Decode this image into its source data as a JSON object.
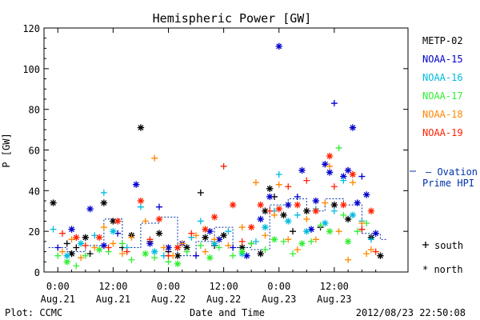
{
  "chart_data": {
    "type": "scatter",
    "title": "Hemispheric Power [GW]",
    "ylabel": "P [GW]",
    "xlabel": "Date and Time",
    "ylim": [
      0,
      120
    ],
    "yticks": [
      0,
      20,
      40,
      60,
      80,
      100,
      120
    ],
    "xlim": [
      -3,
      76
    ],
    "xticks": [
      {
        "hour": 0,
        "time": "0:00",
        "date": "Aug.21"
      },
      {
        "hour": 12,
        "time": "12:00",
        "date": "Aug.21"
      },
      {
        "hour": 24,
        "time": "0:00",
        "date": "Aug.22"
      },
      {
        "hour": 36,
        "time": "12:00",
        "date": "Aug.22"
      },
      {
        "hour": 48,
        "time": "0:00",
        "date": "Aug.23"
      },
      {
        "hour": 60,
        "time": "12:00",
        "date": "Aug.23"
      }
    ],
    "x_unit": "hours since 2012-08-21 00:00 UT",
    "series": [
      {
        "name": "METP-02",
        "color": "#000000",
        "points": [
          [
            -1,
            34,
            "n"
          ],
          [
            2,
            14,
            "+"
          ],
          [
            3,
            9,
            "n"
          ],
          [
            4,
            12,
            "+"
          ],
          [
            6,
            17,
            "n"
          ],
          [
            7,
            9,
            "+"
          ],
          [
            10,
            34,
            "n"
          ],
          [
            12,
            25,
            "n"
          ],
          [
            14,
            12,
            "+"
          ],
          [
            16,
            18,
            "n"
          ],
          [
            18,
            71,
            "n"
          ],
          [
            20,
            15,
            "+"
          ],
          [
            22,
            19,
            "n"
          ],
          [
            24,
            10,
            "+"
          ],
          [
            26,
            8,
            "n"
          ],
          [
            28,
            12,
            "n"
          ],
          [
            31,
            39,
            "+"
          ],
          [
            32,
            17,
            "n"
          ],
          [
            34,
            13,
            "+"
          ],
          [
            36,
            18,
            "n"
          ],
          [
            40,
            12,
            "n"
          ],
          [
            42,
            14,
            "+"
          ],
          [
            44,
            9,
            "n"
          ],
          [
            45,
            30,
            "n"
          ],
          [
            46,
            41,
            "n"
          ],
          [
            47,
            37,
            "+"
          ],
          [
            49,
            28,
            "n"
          ],
          [
            51,
            20,
            "+"
          ],
          [
            54,
            30,
            "n"
          ],
          [
            57,
            22,
            "+"
          ],
          [
            60,
            33,
            "n"
          ],
          [
            63,
            26,
            "n"
          ],
          [
            66,
            21,
            "+"
          ],
          [
            68,
            17,
            "n"
          ],
          [
            70,
            8,
            "n"
          ]
        ]
      },
      {
        "name": "NOAA-15",
        "color": "#0000cc",
        "points": [
          [
            0,
            12,
            "+"
          ],
          [
            3,
            21,
            "n"
          ],
          [
            7,
            31,
            "n"
          ],
          [
            10,
            13,
            "n"
          ],
          [
            13,
            19,
            "+"
          ],
          [
            17,
            43,
            "n"
          ],
          [
            20,
            14,
            "n"
          ],
          [
            22,
            32,
            "+"
          ],
          [
            24,
            12,
            "n"
          ],
          [
            27,
            14,
            "n"
          ],
          [
            30,
            8,
            "+"
          ],
          [
            33,
            20,
            "n"
          ],
          [
            35,
            16,
            "n"
          ],
          [
            38,
            12,
            "+"
          ],
          [
            41,
            8,
            "n"
          ],
          [
            44,
            26,
            "n"
          ],
          [
            46,
            37,
            "n"
          ],
          [
            48,
            111,
            "n"
          ],
          [
            50,
            33,
            "n"
          ],
          [
            52,
            37,
            "+"
          ],
          [
            53,
            50,
            "n"
          ],
          [
            55,
            21,
            "n"
          ],
          [
            56,
            35,
            "n"
          ],
          [
            58,
            53,
            "n"
          ],
          [
            59,
            49,
            "n"
          ],
          [
            60,
            83,
            "+"
          ],
          [
            62,
            47,
            "n"
          ],
          [
            63,
            50,
            "n"
          ],
          [
            64,
            71,
            "n"
          ],
          [
            65,
            34,
            "n"
          ],
          [
            66,
            47,
            "+"
          ],
          [
            67,
            38,
            "n"
          ],
          [
            69,
            19,
            "n"
          ]
        ]
      },
      {
        "name": "NOAA-16",
        "color": "#00bbdd",
        "points": [
          [
            -1,
            21,
            "+"
          ],
          [
            2,
            8,
            "n"
          ],
          [
            5,
            14,
            "n"
          ],
          [
            8,
            18,
            "+"
          ],
          [
            10,
            39,
            "+"
          ],
          [
            12,
            20,
            "n"
          ],
          [
            15,
            12,
            "+"
          ],
          [
            18,
            32,
            "+"
          ],
          [
            21,
            10,
            "n"
          ],
          [
            23,
            8,
            "+"
          ],
          [
            26,
            12,
            "n"
          ],
          [
            29,
            17,
            "+"
          ],
          [
            31,
            25,
            "+"
          ],
          [
            34,
            14,
            "n"
          ],
          [
            37,
            20,
            "+"
          ],
          [
            40,
            9,
            "n"
          ],
          [
            43,
            15,
            "+"
          ],
          [
            45,
            22,
            "n"
          ],
          [
            47,
            30,
            "+"
          ],
          [
            48,
            48,
            "+"
          ],
          [
            50,
            25,
            "n"
          ],
          [
            52,
            28,
            "+"
          ],
          [
            54,
            20,
            "n"
          ],
          [
            56,
            31,
            "+"
          ],
          [
            58,
            24,
            "n"
          ],
          [
            60,
            30,
            "+"
          ],
          [
            62,
            45,
            "+"
          ],
          [
            64,
            28,
            "n"
          ],
          [
            66,
            25,
            "+"
          ],
          [
            68,
            16,
            "+"
          ]
        ]
      },
      {
        "name": "NOAA-17",
        "color": "#33ee33",
        "points": [
          [
            0,
            8,
            "+"
          ],
          [
            2,
            5,
            "n"
          ],
          [
            4,
            3,
            "+"
          ],
          [
            6,
            8,
            "+"
          ],
          [
            9,
            11,
            "n"
          ],
          [
            11,
            10,
            "+"
          ],
          [
            14,
            14,
            "+"
          ],
          [
            16,
            6,
            "+"
          ],
          [
            19,
            9,
            "n"
          ],
          [
            21,
            7,
            "+"
          ],
          [
            24,
            5,
            "+"
          ],
          [
            26,
            4,
            "n"
          ],
          [
            28,
            10,
            "+"
          ],
          [
            31,
            13,
            "+"
          ],
          [
            33,
            7,
            "n"
          ],
          [
            35,
            12,
            "+"
          ],
          [
            38,
            8,
            "+"
          ],
          [
            40,
            10,
            "n"
          ],
          [
            42,
            14,
            "+"
          ],
          [
            45,
            11,
            "+"
          ],
          [
            47,
            16,
            "n"
          ],
          [
            49,
            15,
            "+"
          ],
          [
            51,
            9,
            "+"
          ],
          [
            53,
            14,
            "n"
          ],
          [
            55,
            15,
            "+"
          ],
          [
            57,
            23,
            "+"
          ],
          [
            59,
            20,
            "n"
          ],
          [
            61,
            61,
            "+"
          ],
          [
            62,
            28,
            "+"
          ],
          [
            63,
            15,
            "n"
          ],
          [
            65,
            20,
            "+"
          ],
          [
            67,
            24,
            "+"
          ]
        ]
      },
      {
        "name": "NOAA-18",
        "color": "#ff8800",
        "points": [
          [
            1,
            10,
            "+"
          ],
          [
            3,
            16,
            "+"
          ],
          [
            5,
            7,
            "+"
          ],
          [
            8,
            12,
            "+"
          ],
          [
            10,
            22,
            "+"
          ],
          [
            12,
            14,
            "+"
          ],
          [
            14,
            9,
            "+"
          ],
          [
            16,
            17,
            "+"
          ],
          [
            19,
            25,
            "+"
          ],
          [
            21,
            56,
            "+"
          ],
          [
            23,
            12,
            "+"
          ],
          [
            25,
            8,
            "+"
          ],
          [
            27,
            14,
            "+"
          ],
          [
            30,
            18,
            "+"
          ],
          [
            32,
            10,
            "+"
          ],
          [
            34,
            16,
            "+"
          ],
          [
            37,
            13,
            "+"
          ],
          [
            40,
            22,
            "+"
          ],
          [
            43,
            44,
            "+"
          ],
          [
            45,
            18,
            "+"
          ],
          [
            47,
            28,
            "+"
          ],
          [
            48,
            43,
            "+"
          ],
          [
            50,
            16,
            "+"
          ],
          [
            52,
            11,
            "+"
          ],
          [
            54,
            26,
            "+"
          ],
          [
            56,
            16,
            "+"
          ],
          [
            58,
            34,
            "+"
          ],
          [
            59,
            52,
            "+"
          ],
          [
            61,
            20,
            "+"
          ],
          [
            63,
            6,
            "+"
          ],
          [
            64,
            44,
            "+"
          ],
          [
            66,
            24,
            "+"
          ],
          [
            67,
            9,
            "+"
          ],
          [
            68,
            11,
            "+"
          ]
        ]
      },
      {
        "name": "NOAA-19",
        "color": "#ff2200",
        "points": [
          [
            1,
            19,
            "+"
          ],
          [
            4,
            17,
            "n"
          ],
          [
            6,
            13,
            "+"
          ],
          [
            9,
            17,
            "n"
          ],
          [
            11,
            12,
            "+"
          ],
          [
            13,
            25,
            "n"
          ],
          [
            15,
            10,
            "+"
          ],
          [
            18,
            35,
            "n"
          ],
          [
            20,
            16,
            "+"
          ],
          [
            22,
            26,
            "n"
          ],
          [
            24,
            8,
            "+"
          ],
          [
            26,
            12,
            "n"
          ],
          [
            29,
            19,
            "+"
          ],
          [
            32,
            21,
            "n"
          ],
          [
            34,
            27,
            "n"
          ],
          [
            36,
            52,
            "+"
          ],
          [
            38,
            33,
            "n"
          ],
          [
            40,
            15,
            "+"
          ],
          [
            42,
            22,
            "n"
          ],
          [
            44,
            33,
            "n"
          ],
          [
            46,
            30,
            "+"
          ],
          [
            48,
            31,
            "n"
          ],
          [
            50,
            42,
            "+"
          ],
          [
            52,
            33,
            "n"
          ],
          [
            54,
            45,
            "+"
          ],
          [
            56,
            30,
            "n"
          ],
          [
            59,
            57,
            "n"
          ],
          [
            60,
            42,
            "+"
          ],
          [
            62,
            33,
            "n"
          ],
          [
            64,
            48,
            "n"
          ],
          [
            66,
            21,
            "+"
          ],
          [
            68,
            30,
            "n"
          ],
          [
            69,
            10,
            "+"
          ]
        ]
      },
      {
        "name": "Ovation Prime HPI",
        "color": "#0033aa",
        "style": "dashed-step",
        "points": [
          [
            -2,
            12
          ],
          [
            2,
            10
          ],
          [
            6,
            13
          ],
          [
            10,
            26
          ],
          [
            14,
            12
          ],
          [
            18,
            24
          ],
          [
            22,
            27
          ],
          [
            26,
            8
          ],
          [
            30,
            15
          ],
          [
            34,
            22
          ],
          [
            38,
            12
          ],
          [
            42,
            11
          ],
          [
            46,
            33
          ],
          [
            50,
            36
          ],
          [
            54,
            30
          ],
          [
            58,
            36
          ],
          [
            62,
            33
          ],
          [
            66,
            19
          ],
          [
            70,
            16
          ]
        ]
      }
    ],
    "legend": {
      "placement": "right",
      "entries": [
        "METP-02",
        "NOAA-15",
        "NOAA-16",
        "NOAA-17",
        "NOAA-18",
        "NOAA-19"
      ],
      "ovation_line1": "Ovation",
      "ovation_line2": "Prime HPI",
      "south_label": "south",
      "north_label": "north",
      "south_marker": "+",
      "north_marker": "*"
    },
    "grid": false
  },
  "footer": {
    "left": "Plot: CCMC",
    "right": "2012/08/23 22:50:08"
  }
}
